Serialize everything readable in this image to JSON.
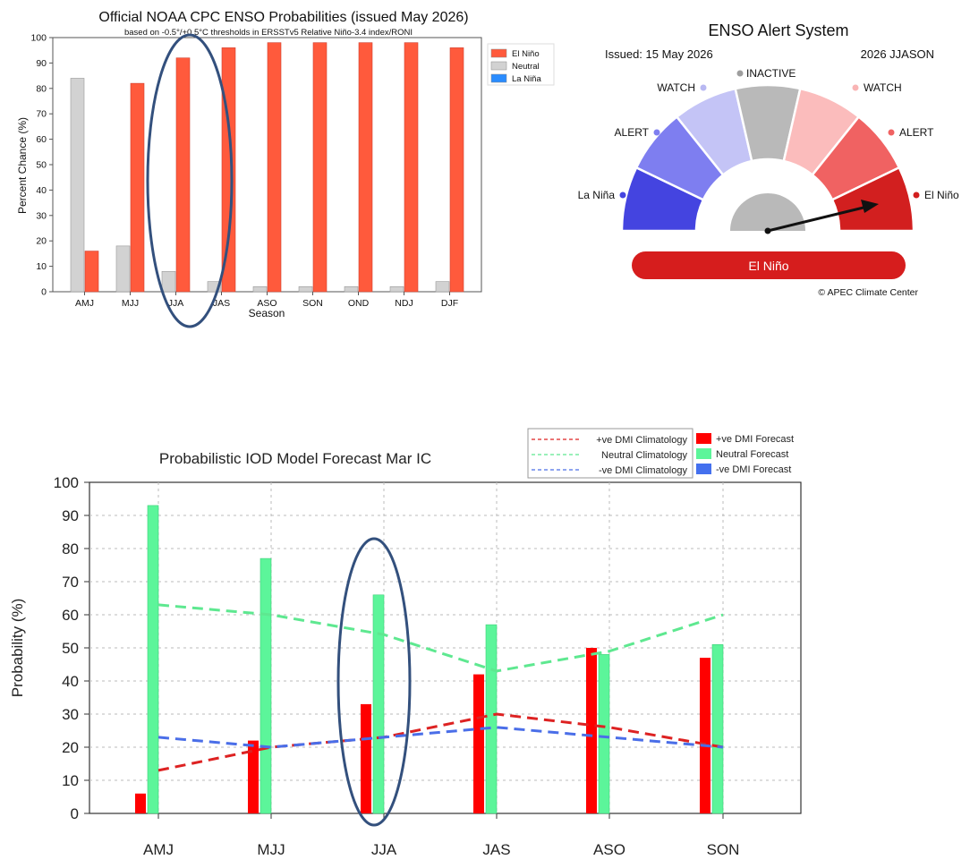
{
  "chart_data": [
    {
      "type": "bar",
      "title": "Official NOAA CPC ENSO Probabilities (issued May 2026)",
      "subtitle": "based on -0.5°/+0.5°C thresholds in ERSSTv5 Relative Niño-3.4 index/RONI",
      "xlabel": "Season",
      "ylabel": "Percent Chance (%)",
      "ylim": [
        0,
        100
      ],
      "yticks": [
        "0",
        "10",
        "20",
        "30",
        "40",
        "50",
        "60",
        "70",
        "80",
        "90",
        "100"
      ],
      "categories": [
        "AMJ",
        "MJJ",
        "JJA",
        "JAS",
        "ASO",
        "SON",
        "OND",
        "NDJ",
        "DJF"
      ],
      "series": [
        {
          "name": "El Niño",
          "color": "#ff5a3c",
          "values": [
            16,
            82,
            92,
            96,
            98,
            98,
            98,
            98,
            96
          ]
        },
        {
          "name": "Neutral",
          "color": "#d2d2d2",
          "values": [
            84,
            18,
            8,
            4,
            2,
            2,
            2,
            2,
            4
          ]
        },
        {
          "name": "La Niña",
          "color": "#2a8cff",
          "values": [
            0,
            0,
            0,
            0,
            0,
            0,
            0,
            0,
            0
          ]
        }
      ],
      "legend": "top-right",
      "highlight_category": "JJA"
    },
    {
      "type": "gauge",
      "title": "ENSO Alert System",
      "issued": "Issued: 15 May 2026",
      "season": "2026 JJASON",
      "segments": [
        {
          "label": "La Niña",
          "color": "#4444e0",
          "dot": "#4444e0"
        },
        {
          "label": "ALERT",
          "color": "#7e7ef0",
          "dot": "#7e7ef0"
        },
        {
          "label": "WATCH",
          "color": "#c4c4f6",
          "dot": "#b8b8f2"
        },
        {
          "label": "INACTIVE",
          "color": "#b9b9b9",
          "dot": "#9e9e9e"
        },
        {
          "label": "WATCH",
          "color": "#fbbcbc",
          "dot": "#f9b4b4"
        },
        {
          "label": "ALERT",
          "color": "#f06262",
          "dot": "#f06262"
        },
        {
          "label": "El Niño",
          "color": "#d21f1f",
          "dot": "#d21f1f"
        }
      ],
      "status": "El Niño",
      "status_color": "#d61d1d",
      "credit": "© APEC Climate Center"
    },
    {
      "type": "bar",
      "title": "Probabilistic IOD Model Forecast  Mar IC",
      "xlabel": "",
      "ylabel": "Probability (%)",
      "ylim": [
        0,
        100
      ],
      "yticks": [
        "0",
        "10",
        "20",
        "30",
        "40",
        "50",
        "60",
        "70",
        "80",
        "90",
        "100"
      ],
      "categories": [
        "AMJ",
        "MJJ",
        "JJA",
        "JAS",
        "ASO",
        "SON"
      ],
      "series": [
        {
          "name": "+ve DMI Forecast",
          "color": "#ff0000",
          "values": [
            6,
            22,
            33,
            42,
            50,
            47
          ]
        },
        {
          "name": "Neutral Forecast",
          "color": "#5cf59a",
          "values": [
            93,
            77,
            66,
            57,
            48,
            51
          ]
        },
        {
          "name": "-ve DMI Forecast",
          "color": "#4470ee",
          "values": [
            0,
            0,
            0,
            0,
            0,
            0
          ]
        }
      ],
      "climatology": [
        {
          "name": "+ve DMI Climatology",
          "color": "#dd2222",
          "values": [
            13,
            20,
            23,
            30,
            26,
            20
          ]
        },
        {
          "name": "Neutral Climatology",
          "color": "#5ee890",
          "values": [
            63,
            60,
            54,
            43,
            49,
            60
          ]
        },
        {
          "name": "-ve DMI Climatology",
          "color": "#4a6ee8",
          "values": [
            23,
            20,
            23,
            26,
            23,
            20
          ]
        }
      ],
      "legend": "top-right",
      "highlight_category": "JJA"
    }
  ]
}
